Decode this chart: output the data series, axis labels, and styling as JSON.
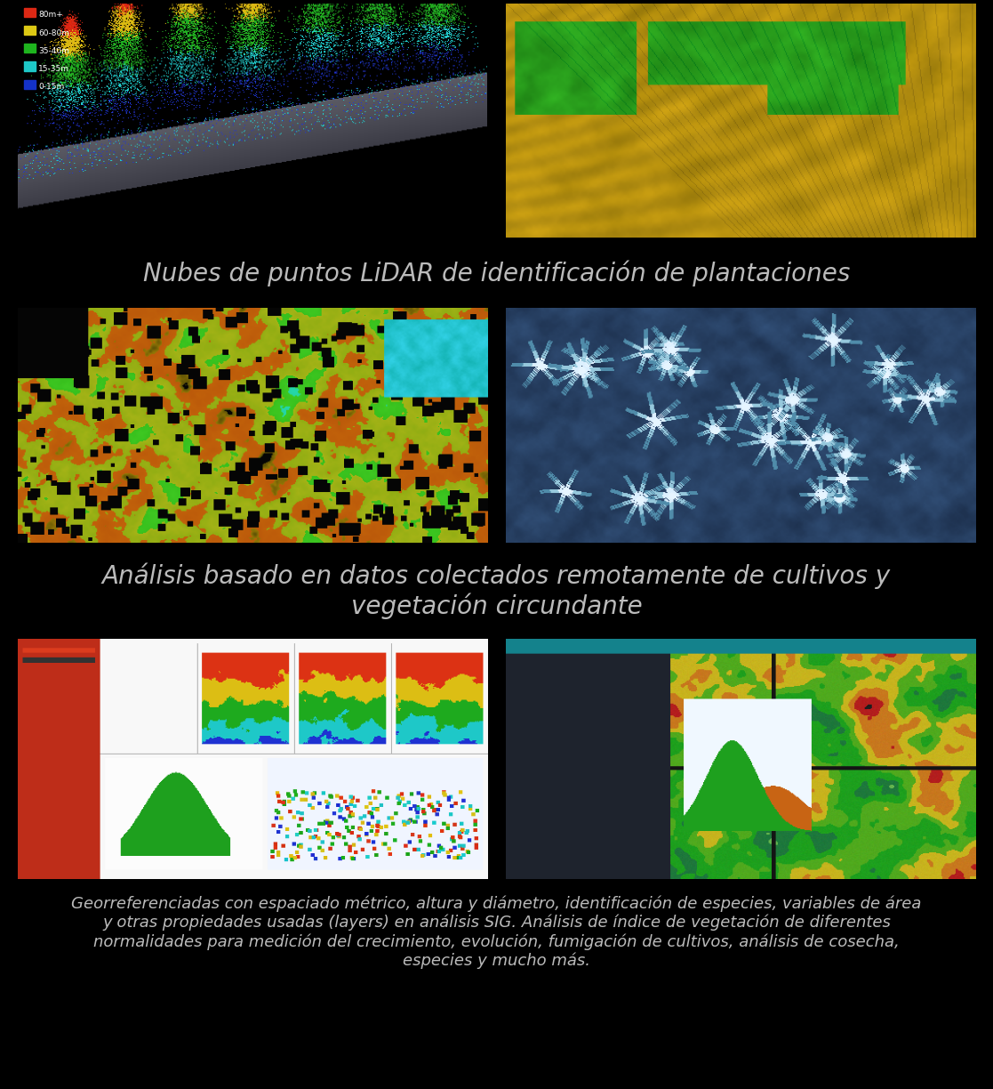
{
  "background_color": "#000000",
  "text_color": "#bbbbbb",
  "caption1": "Nubes de puntos LiDAR de identificación de plantaciones",
  "caption2": "Análisis basado en datos colectados remotamente de cultivos y\nvegetación circundante",
  "caption3": "Georreferenciadas con espaciado métrico, altura y diámetro, identificación de especies, variables de área\ny otras propiedades usadas (layers) en análisis SIG. Análisis de índice de vegetación de diferentes\nnormalidades para medición del crecimiento, evolución, fumigación de cultivos, análisis de cosecha,\nespecies y mucho más.",
  "caption1_fontsize": 20,
  "caption2_fontsize": 20,
  "caption3_fontsize": 13,
  "fig_width": 11.17,
  "fig_height": 12.24
}
